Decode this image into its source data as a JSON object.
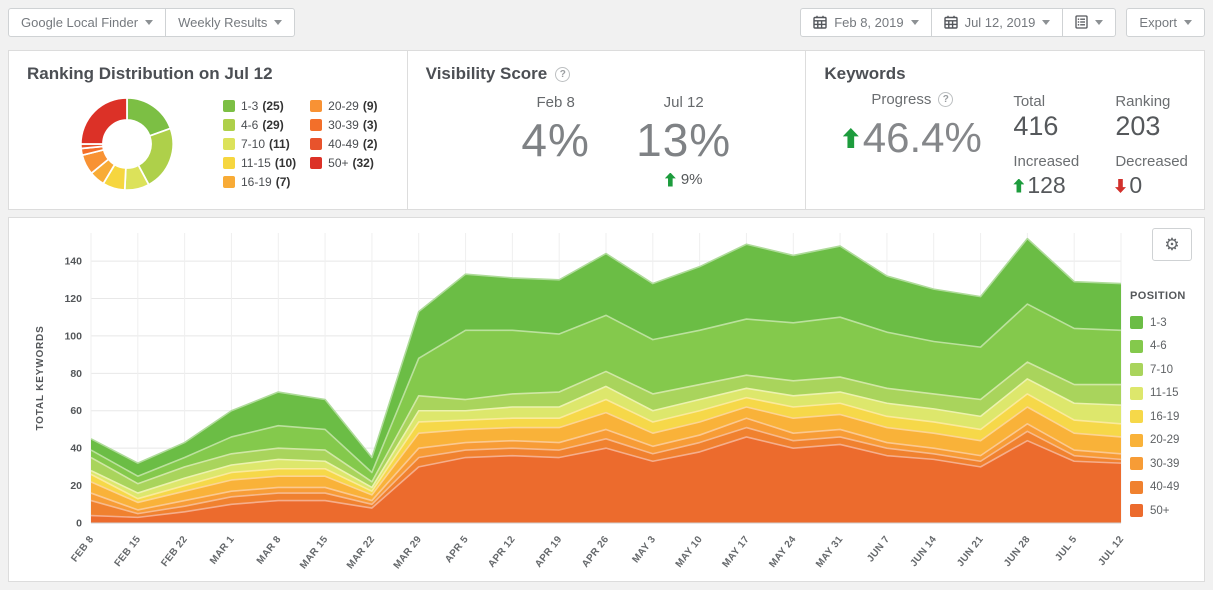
{
  "toolbar": {
    "finder_label": "Google Local Finder",
    "results_label": "Weekly Results",
    "date_from_label": "Feb 8, 2019",
    "date_to_label": "Jul 12, 2019",
    "export_label": "Export"
  },
  "ranking_panel": {
    "title": "Ranking Distribution on Jul 12"
  },
  "visibility_panel": {
    "title": "Visibility Score",
    "help_icon": "?",
    "columns": [
      {
        "date": "Feb 8",
        "value": "4%"
      },
      {
        "date": "Jul 12",
        "value": "13%",
        "delta": "9%"
      }
    ]
  },
  "keywords_panel": {
    "title": "Keywords",
    "progress_label": "Progress",
    "help_icon": "?",
    "progress_value": "46.4%",
    "stats": {
      "total": {
        "label": "Total",
        "value": "416"
      },
      "ranking": {
        "label": "Ranking",
        "value": "203"
      },
      "increased": {
        "label": "Increased",
        "value": "128"
      },
      "decreased": {
        "label": "Decreased",
        "value": "0"
      }
    }
  },
  "status_colors": {
    "up_green": "#1d9c3d",
    "down_red": "#d2302c"
  },
  "chart_data": [
    {
      "type": "pie",
      "subtype": "donut",
      "title": "Ranking Distribution on Jul 12",
      "total": 128,
      "segments": [
        {
          "label": "1-3",
          "value": 25,
          "color": "#7cbf44"
        },
        {
          "label": "4-6",
          "value": 29,
          "color": "#aed04a"
        },
        {
          "label": "7-10",
          "value": 11,
          "color": "#dce25a"
        },
        {
          "label": "11-15",
          "value": 10,
          "color": "#f6d63f"
        },
        {
          "label": "16-19",
          "value": 7,
          "color": "#f8ab36"
        },
        {
          "label": "20-29",
          "value": 9,
          "color": "#f89234"
        },
        {
          "label": "30-39",
          "value": 3,
          "color": "#f36f2a"
        },
        {
          "label": "40-49",
          "value": 2,
          "color": "#e8532c"
        },
        {
          "label": "50+",
          "value": 32,
          "color": "#dc3127"
        }
      ],
      "legend_columns": [
        [
          0,
          1,
          2,
          3,
          4
        ],
        [
          5,
          6,
          7,
          8
        ]
      ]
    },
    {
      "type": "area",
      "stacked": true,
      "ylabel": "TOTAL KEYWORDS",
      "legend_title": "POSITION",
      "legend_position": "right",
      "grid": true,
      "ylim": [
        0,
        155
      ],
      "yticks": [
        0,
        20,
        40,
        60,
        80,
        100,
        120,
        140
      ],
      "categories": [
        "FEB 8",
        "FEB 15",
        "FEB 22",
        "MAR 1",
        "MAR 8",
        "MAR 15",
        "MAR 22",
        "MAR 29",
        "APR 5",
        "APR 12",
        "APR 19",
        "APR 26",
        "MAY 3",
        "MAY 10",
        "MAY 17",
        "MAY 24",
        "MAY 31",
        "JUN 7",
        "JUN 14",
        "JUN 21",
        "JUN 28",
        "JUL 5",
        "JUL 12"
      ],
      "series": [
        {
          "name": "1-3",
          "color": "#6bbd45",
          "values": [
            6,
            7,
            8,
            14,
            18,
            16,
            8,
            25,
            30,
            28,
            29,
            33,
            30,
            34,
            40,
            36,
            38,
            30,
            28,
            27,
            35,
            25,
            25
          ]
        },
        {
          "name": "4-6",
          "color": "#84c94c",
          "values": [
            4,
            4,
            5,
            9,
            12,
            11,
            5,
            20,
            37,
            34,
            31,
            30,
            29,
            29,
            30,
            31,
            32,
            30,
            28,
            28,
            31,
            30,
            29
          ]
        },
        {
          "name": "7-10",
          "color": "#a9d45c",
          "values": [
            7,
            5,
            6,
            6,
            6,
            6,
            3,
            8,
            6,
            7,
            8,
            8,
            9,
            8,
            7,
            8,
            8,
            8,
            8,
            9,
            9,
            10,
            11
          ]
        },
        {
          "name": "11-15",
          "color": "#dde76c",
          "values": [
            2,
            3,
            4,
            4,
            5,
            4,
            2,
            6,
            5,
            6,
            6,
            7,
            6,
            6,
            5,
            6,
            6,
            7,
            7,
            7,
            8,
            9,
            10
          ]
        },
        {
          "name": "16-19",
          "color": "#f6d849",
          "values": [
            4,
            2,
            3,
            4,
            4,
            4,
            2,
            6,
            5,
            5,
            5,
            7,
            6,
            6,
            5,
            6,
            6,
            6,
            6,
            6,
            7,
            7,
            7
          ]
        },
        {
          "name": "20-29",
          "color": "#f9b239",
          "values": [
            6,
            4,
            5,
            6,
            6,
            6,
            3,
            8,
            7,
            7,
            8,
            9,
            7,
            7,
            6,
            8,
            8,
            8,
            8,
            8,
            9,
            9,
            9
          ]
        },
        {
          "name": "30-39",
          "color": "#f79c36",
          "values": [
            4,
            2,
            3,
            3,
            3,
            3,
            2,
            5,
            4,
            4,
            4,
            5,
            4,
            4,
            5,
            4,
            4,
            3,
            3,
            3,
            4,
            3,
            3
          ]
        },
        {
          "name": "40-49",
          "color": "#f0812f",
          "values": [
            8,
            2,
            3,
            4,
            4,
            4,
            2,
            5,
            4,
            4,
            4,
            5,
            4,
            5,
            5,
            4,
            4,
            4,
            3,
            3,
            5,
            3,
            2
          ]
        },
        {
          "name": "50+",
          "color": "#ec6b2d",
          "values": [
            4,
            3,
            6,
            10,
            12,
            12,
            8,
            30,
            35,
            36,
            35,
            40,
            33,
            38,
            46,
            40,
            42,
            36,
            34,
            30,
            44,
            33,
            32
          ]
        }
      ],
      "stack_note": "series stacked with 50+ at bottom and 1-3 on top"
    }
  ]
}
